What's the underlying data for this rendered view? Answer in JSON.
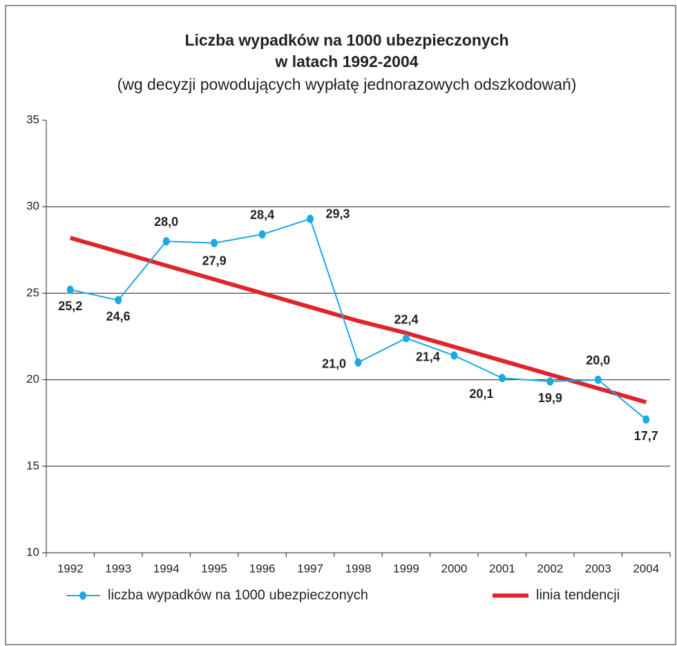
{
  "chart_data": {
    "type": "line",
    "title": [
      "Liczba wypadków na 1000 ubezpieczonych",
      "w latach 1992-2004"
    ],
    "subtitle": "(wg decyzji powodujących wypłatę jednorazowych odszkodowań)",
    "categories": [
      "1992",
      "1993",
      "1994",
      "1995",
      "1996",
      "1997",
      "1998",
      "1999",
      "2000",
      "2001",
      "2002",
      "2003",
      "2004"
    ],
    "series": [
      {
        "name": "liczba wypadków na 1000 ubezpieczonych",
        "color": "#1ba9e1",
        "values": [
          25.2,
          24.6,
          28.0,
          27.9,
          28.4,
          29.3,
          21.0,
          22.4,
          21.4,
          20.1,
          19.9,
          20.0,
          17.7
        ],
        "value_labels": [
          "25,2",
          "24,6",
          "28,0",
          "27,9",
          "28,4",
          "29,3",
          "21,0",
          "22,4",
          "21,4",
          "20,1",
          "19,9",
          "20,0",
          "17,7"
        ]
      },
      {
        "name": "linia tendencji",
        "color": "#e1242b",
        "values": [
          28.2,
          27.4,
          26.6,
          25.8,
          25.0,
          24.2,
          23.4,
          22.7,
          21.9,
          21.1,
          20.3,
          19.5,
          18.7
        ]
      }
    ],
    "ylim": [
      10,
      35
    ],
    "yticks": [
      10,
      15,
      20,
      25,
      30,
      35
    ],
    "grid": true,
    "legend": "bottom"
  }
}
